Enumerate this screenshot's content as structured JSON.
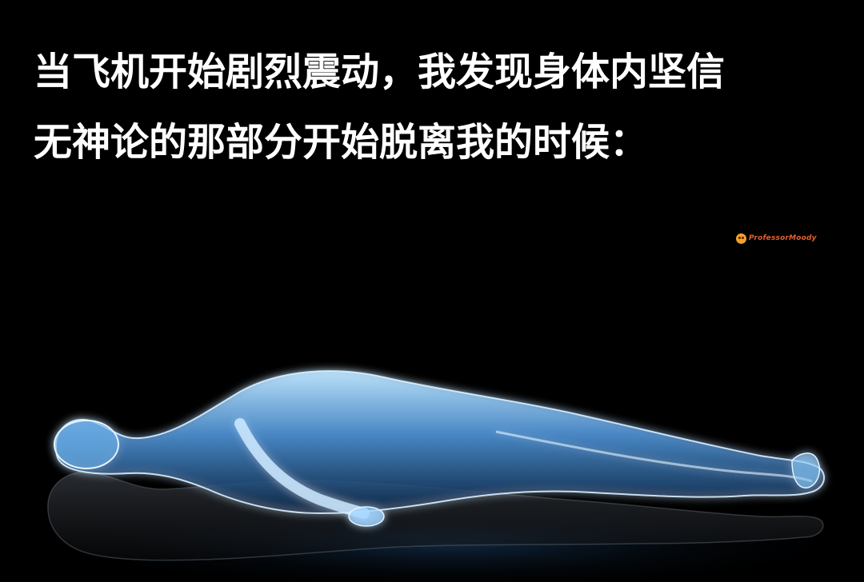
{
  "caption": {
    "line1": "当飞机开始剧烈震动，我发现身体内坚信",
    "line2": "无神论的那部分开始脱离我的时候："
  },
  "watermark": {
    "text": "ProfessorMoody",
    "icon": "face-emoji-icon"
  },
  "image": {
    "subject": "glowing-body-leaving-figure",
    "glow_color": "#7fc6ff",
    "background_color": "#000000"
  }
}
